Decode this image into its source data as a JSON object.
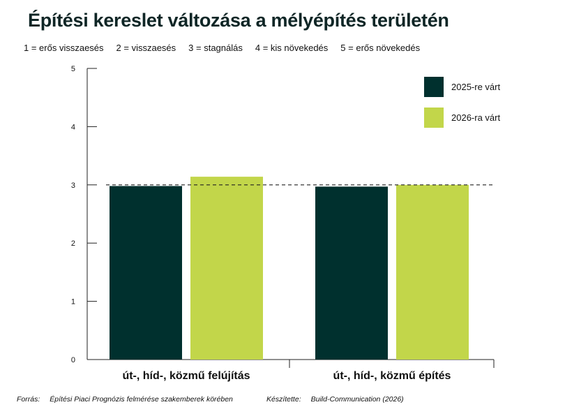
{
  "title": "Építési kereslet változása a mélyépítés területén",
  "scale_legend": [
    "1 = erős visszaesés",
    "2 = visszaesés",
    "3 = stagnálás",
    "4 = kis növekedés",
    "5 = erős növekedés"
  ],
  "footer": {
    "source_label": "Forrás:",
    "source_text": "Építési Piaci Prognózis felmérése szakemberek körében",
    "author_label": "Készítette:",
    "author_text": "Build-Communication (2026)"
  },
  "colors": {
    "series_2025": "#00302e",
    "series_2026": "#c2d64a",
    "axis": "#222222",
    "title": "#0f2626"
  },
  "chart_data": {
    "type": "bar",
    "title": "Építési kereslet változása a mélyépítés területén",
    "xlabel": "",
    "ylabel": "",
    "categories": [
      "út-, híd-, közmű felújítás",
      "út-, híd-, közmű építés"
    ],
    "series": [
      {
        "name": "2025-re várt",
        "values": [
          2.98,
          2.97
        ]
      },
      {
        "name": "2026-ra várt",
        "values": [
          3.14,
          3.0
        ]
      }
    ],
    "ylim": [
      0,
      5
    ],
    "yticks": [
      0,
      1,
      2,
      3,
      4,
      5
    ],
    "reference_line": 3,
    "grid": false,
    "legend_position": "top-right"
  }
}
